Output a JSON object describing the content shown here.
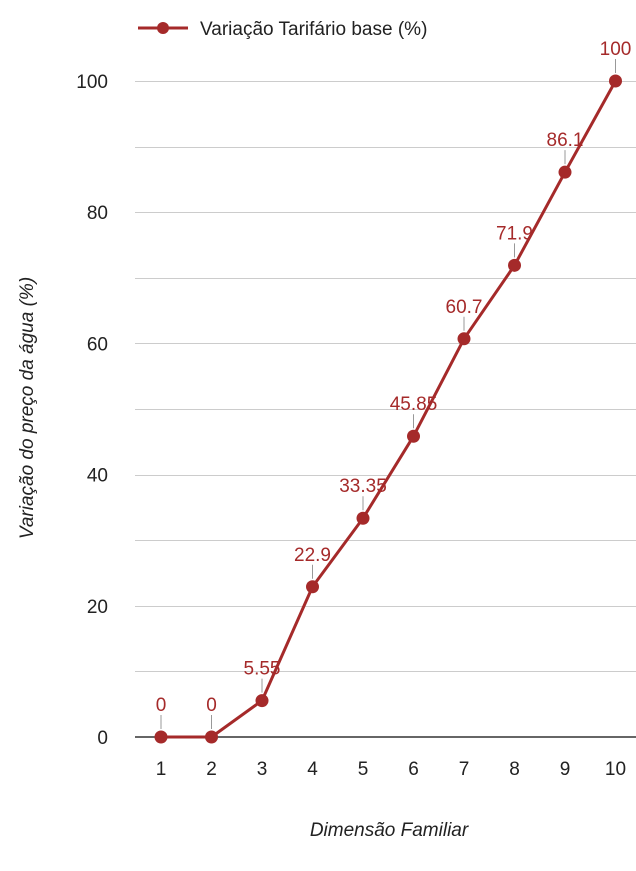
{
  "chart_data": {
    "type": "line",
    "title": "",
    "xlabel": "Dimensão Familiar",
    "ylabel": "Variação do preço da água (%)",
    "x": [
      1,
      2,
      3,
      4,
      5,
      6,
      7,
      8,
      9,
      10
    ],
    "x_tick_labels": [
      "1",
      "2",
      "3",
      "4",
      "5",
      "6",
      "7",
      "8",
      "9",
      "10"
    ],
    "y_tick_labels": [
      "0",
      "20",
      "40",
      "60",
      "80",
      "100"
    ],
    "ylim": [
      0,
      100
    ],
    "grid": true,
    "legend_position": "top",
    "series": [
      {
        "name": "Variação Tarifário base (%)",
        "color": "#a52a2a",
        "values": [
          0,
          0,
          5.55,
          22.9,
          33.35,
          45.85,
          60.7,
          71.9,
          86.1,
          100
        ],
        "data_labels": [
          "0",
          "0",
          "5.55",
          "22.9",
          "33.35",
          "45.85",
          "60.7",
          "71.9",
          "86.1",
          "100"
        ]
      }
    ]
  }
}
